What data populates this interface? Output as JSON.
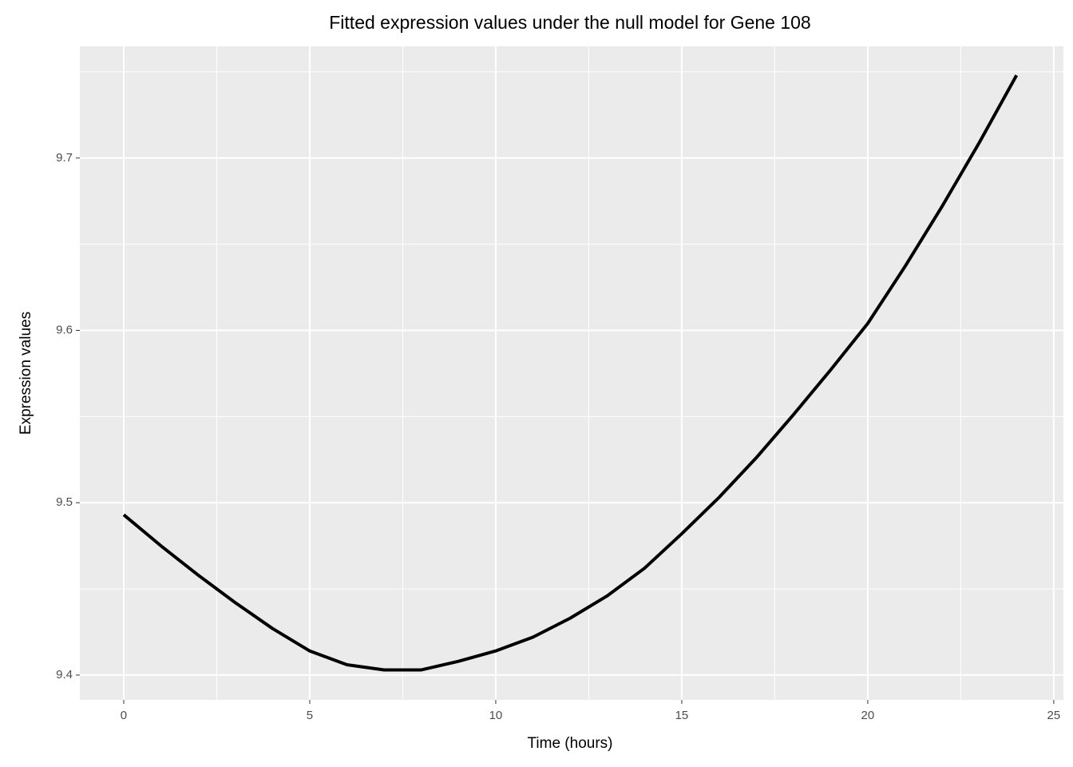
{
  "chart_data": {
    "type": "line",
    "title": "Fitted expression values under the null model for Gene 108",
    "xlabel": "Time (hours)",
    "ylabel": "Expression values",
    "x": [
      0,
      1,
      2,
      3,
      4,
      5,
      6,
      7,
      8,
      9,
      10,
      11,
      12,
      13,
      14,
      15,
      16,
      17,
      18,
      19,
      20,
      21,
      22,
      23,
      24
    ],
    "series": [
      {
        "color": "#000000",
        "values": [
          9.493,
          9.475,
          9.458,
          9.442,
          9.427,
          9.414,
          9.406,
          9.403,
          9.403,
          9.408,
          9.414,
          9.422,
          9.433,
          9.446,
          9.462,
          9.482,
          9.503,
          9.526,
          9.551,
          9.577,
          9.604,
          9.637,
          9.672,
          9.709,
          9.748
        ]
      }
    ],
    "xlim": [
      -1.18,
      25.26
    ],
    "ylim": [
      9.3856,
      9.7648
    ],
    "xticks": [
      0,
      5,
      10,
      15,
      20,
      25
    ],
    "yticks": [
      9.4,
      9.5,
      9.6,
      9.7
    ],
    "x_minor_ticks": [
      2.5,
      7.5,
      12.5,
      17.5,
      22.5
    ],
    "y_minor_ticks": [
      9.45,
      9.55,
      9.65,
      9.75
    ],
    "grid": true,
    "panel_color": "#ebebeb"
  }
}
